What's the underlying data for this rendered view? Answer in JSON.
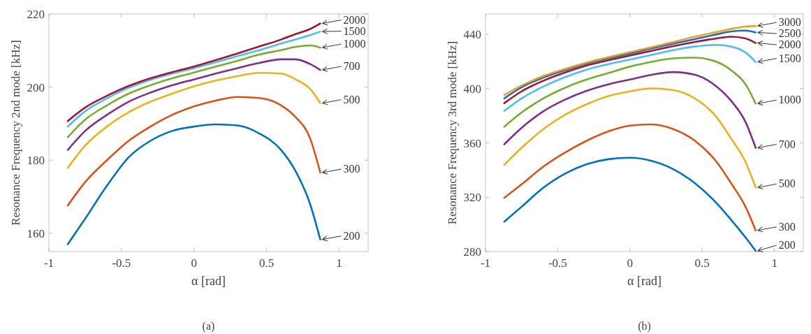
{
  "chart_data": [
    {
      "type": "line",
      "ylabel": "Resonance Frequency 2nd mode [kHz]",
      "xlabel": "α [rad]",
      "xlim": [
        -1,
        1.2
      ],
      "ylim": [
        155,
        220
      ],
      "xticks": [
        -1,
        -0.5,
        0,
        0.5,
        1
      ],
      "yticks": [
        160,
        180,
        200,
        220
      ],
      "grid": false,
      "marker": "none",
      "line_style": "solid",
      "annotations": [
        "(a)"
      ],
      "x": [
        -0.87,
        -0.75,
        -0.6,
        -0.45,
        -0.3,
        -0.15,
        0,
        0.15,
        0.3,
        0.45,
        0.6,
        0.7,
        0.8,
        0.87
      ],
      "series": [
        {
          "name": "200",
          "color": "#0072bd",
          "values": [
            157,
            164,
            173,
            180.8,
            185.3,
            188,
            189.2,
            189.8,
            189.5,
            187.3,
            182.8,
            177,
            168,
            158.3
          ]
        },
        {
          "name": "300",
          "color": "#d95319",
          "values": [
            167.6,
            174,
            180,
            185.3,
            189.2,
            192.4,
            194.7,
            196.3,
            197.3,
            197,
            195,
            191.8,
            186,
            176.6
          ]
        },
        {
          "name": "500",
          "color": "#edb120",
          "values": [
            177.9,
            184,
            189.2,
            193.1,
            196,
            198.2,
            200.2,
            201.8,
            203,
            203.9,
            203.7,
            202.1,
            199.5,
            195.6
          ]
        },
        {
          "name": "700",
          "color": "#7e2f8e",
          "values": [
            182.8,
            188,
            192.4,
            196,
            198.5,
            200.5,
            202.1,
            203.7,
            205.2,
            206.6,
            207.6,
            207.6,
            206.3,
            204.7
          ]
        },
        {
          "name": "1000",
          "color": "#77ac30",
          "values": [
            186.3,
            191.1,
            195,
            198.2,
            200.5,
            202.4,
            204,
            205.6,
            207.2,
            208.9,
            210.1,
            211,
            211.4,
            210.8
          ]
        },
        {
          "name": "1500",
          "color": "#4dbeee",
          "values": [
            189.2,
            193.4,
            196.9,
            199.8,
            202,
            203.7,
            205.2,
            206.8,
            208.5,
            210.1,
            211.9,
            213,
            214.2,
            215.2
          ]
        },
        {
          "name": "2000",
          "color": "#a2142f",
          "values": [
            190.7,
            194.4,
            197.6,
            200.3,
            202.4,
            204.1,
            205.6,
            207.4,
            209.2,
            211.1,
            213,
            214.5,
            215.9,
            217.4
          ]
        }
      ]
    },
    {
      "type": "line",
      "ylabel": "Resonance Frequency 3rd mode [kHz]",
      "xlabel": "α [rad]",
      "xlim": [
        -1,
        1.2
      ],
      "ylim": [
        280,
        455
      ],
      "xticks": [
        -1,
        -0.5,
        0,
        0.5,
        1
      ],
      "yticks": [
        280,
        320,
        360,
        400,
        440
      ],
      "grid": false,
      "marker": "none",
      "line_style": "solid",
      "annotations": [
        "(b)"
      ],
      "x": [
        -0.87,
        -0.75,
        -0.6,
        -0.45,
        -0.3,
        -0.15,
        0,
        0.15,
        0.3,
        0.45,
        0.6,
        0.7,
        0.8,
        0.87
      ],
      "series": [
        {
          "name": "200",
          "color": "#0072bd",
          "values": [
            302,
            313,
            327,
            337.3,
            344.3,
            348,
            349.1,
            346.8,
            340.7,
            330.3,
            315.6,
            303.4,
            290.4,
            280.5
          ]
        },
        {
          "name": "300",
          "color": "#d95319",
          "values": [
            319.6,
            329.5,
            342.5,
            352.9,
            361.6,
            368.5,
            372.8,
            373.7,
            370.2,
            361.6,
            346,
            330.3,
            313,
            295.6
          ]
        },
        {
          "name": "500",
          "color": "#edb120",
          "values": [
            343.9,
            356.4,
            370.2,
            380.7,
            388.5,
            394.5,
            398,
            400.1,
            398.9,
            392.8,
            378.9,
            363.3,
            346,
            327.2
          ]
        },
        {
          "name": "700",
          "color": "#7e2f8e",
          "values": [
            359,
            371.1,
            383.3,
            391.9,
            398.4,
            403.2,
            406.7,
            410.2,
            412.2,
            410.2,
            401.5,
            391.1,
            375.4,
            356.4
          ]
        },
        {
          "name": "1000",
          "color": "#77ac30",
          "values": [
            372,
            382.4,
            392.8,
            400.6,
            406.7,
            411.5,
            416.2,
            419.7,
            422.3,
            422.8,
            419.7,
            413.6,
            403.2,
            389
          ]
        },
        {
          "name": "1500",
          "color": "#4dbeee",
          "values": [
            383.6,
            392.8,
            401.5,
            408.4,
            414,
            418,
            421.4,
            424.9,
            428.4,
            431,
            432.2,
            431,
            426.6,
            419.7
          ]
        },
        {
          "name": "2000",
          "color": "#a2142f",
          "values": [
            389.3,
            398,
            405.8,
            411.9,
            417.1,
            420.9,
            424.4,
            427.9,
            431.3,
            434.4,
            437,
            438.3,
            437,
            433.6
          ]
        },
        {
          "name": "2500",
          "color": "#1f6fb8",
          "values": [
            392.8,
            401,
            408.1,
            413.6,
            418.5,
            422.3,
            425.8,
            429.6,
            433.1,
            436.5,
            440,
            442.1,
            442.8,
            441.4
          ]
        },
        {
          "name": "3000",
          "color": "#eba02a",
          "values": [
            395.4,
            402.3,
            409.3,
            414.5,
            419.2,
            423.2,
            427,
            430.6,
            434.4,
            438.3,
            441.7,
            444,
            445.7,
            446.2
          ]
        }
      ]
    }
  ]
}
